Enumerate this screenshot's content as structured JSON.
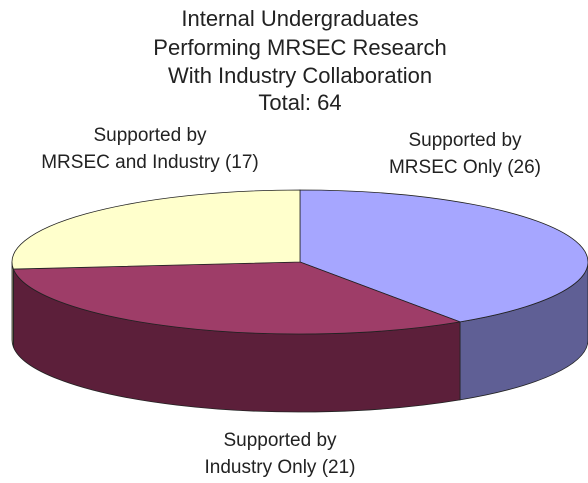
{
  "chart_data": {
    "type": "pie3d",
    "title": [
      "Internal Undergraduates",
      "Performing MRSEC Research",
      "With Industry Collaboration",
      "Total: 64"
    ],
    "categories": [
      [
        "Supported by",
        "MRSEC Only (26)"
      ],
      [
        "Supported by",
        "Industry Only (21)"
      ],
      [
        "Supported by",
        "MRSEC and Industry (17)"
      ]
    ],
    "values": [
      26,
      21,
      17
    ],
    "colors": [
      "#a6a6ff",
      "#9e3d68",
      "#ffffcc"
    ],
    "side_colors": [
      "#5f5f95",
      "#5c1f3a",
      "#999979"
    ]
  }
}
